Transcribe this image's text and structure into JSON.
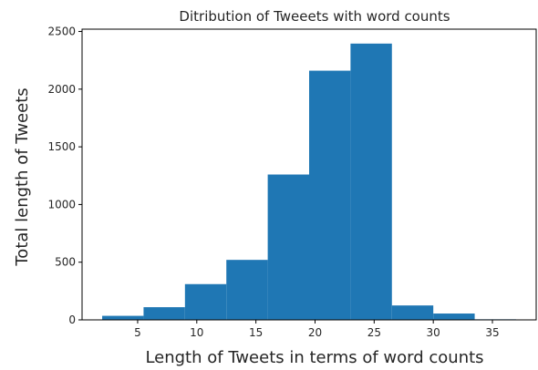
{
  "chart_data": {
    "type": "bar",
    "subtype": "histogram",
    "title": "Ditribution of Tweeets with word counts",
    "xlabel": "Length of Tweets in terms of word counts",
    "ylabel": "Total length of Tweets",
    "xlim": [
      0.3,
      38.7
    ],
    "ylim": [
      0,
      2520
    ],
    "xticks": [
      5,
      10,
      15,
      20,
      25,
      30,
      35
    ],
    "yticks": [
      0,
      500,
      1000,
      1500,
      2000,
      2500
    ],
    "bin_edges": [
      2.0,
      5.5,
      9.0,
      12.5,
      16.0,
      19.5,
      23.0,
      26.5,
      30.0,
      33.5,
      37.0
    ],
    "values": [
      35,
      110,
      310,
      520,
      1260,
      2160,
      2395,
      125,
      55,
      5
    ],
    "bar_color": "#1f77b4",
    "grid": false,
    "legend": "none"
  }
}
